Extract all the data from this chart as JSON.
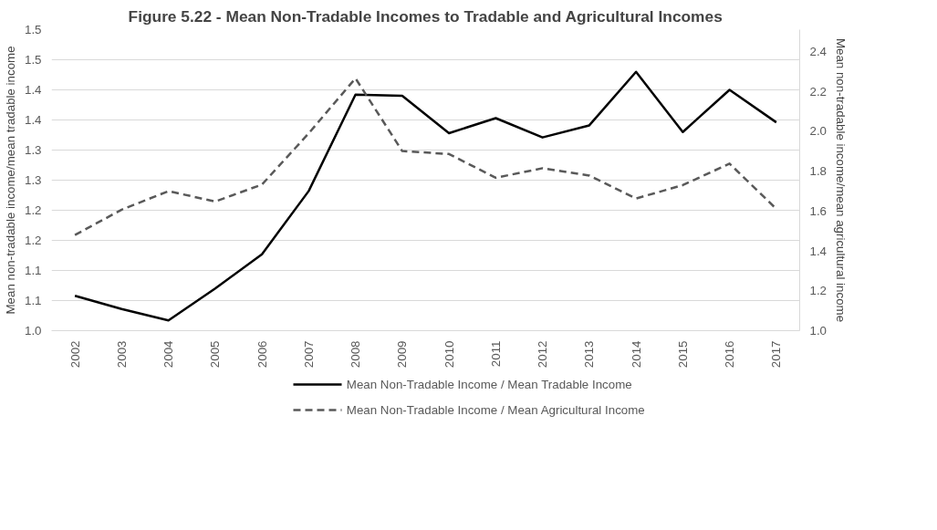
{
  "chart_data": {
    "type": "line",
    "title": "Figure 5.22 - Mean Non-Tradable Incomes to Tradable and Agricultural Incomes",
    "ylabel": "Mean non-tradable income/mean tradable income",
    "y2label": "Mean non-tradable income/mean agricultural income",
    "categories": [
      "2002",
      "2003",
      "2004",
      "2005",
      "2006",
      "2007",
      "2008",
      "2009",
      "2010",
      "2011",
      "2012",
      "2013",
      "2014",
      "2015",
      "2016",
      "2017"
    ],
    "series": [
      {
        "name": "Mean Non-Tradable Income / Mean Tradable Income",
        "color": "#000000",
        "line_style": "solid",
        "values": [
          1.058,
          1.036,
          1.017,
          1.07,
          1.127,
          1.232,
          1.392,
          1.39,
          1.328,
          1.353,
          1.321,
          1.341,
          1.43,
          1.33,
          1.4,
          1.346
        ]
      },
      {
        "name": "Mean Non-Tradable Income / Mean Agricultural Income",
        "color": "#595959",
        "line_style": "dashed",
        "axis": "y2",
        "values": [
          1.48,
          1.607,
          1.7,
          1.648,
          1.733,
          1.99,
          2.266,
          1.901,
          1.886,
          1.767,
          1.815,
          1.778,
          1.663,
          1.73,
          1.838,
          1.611
        ]
      }
    ],
    "ylim": [
      1.0,
      1.5
    ],
    "yticks": [
      {
        "value": 1.0,
        "label": "1.0"
      },
      {
        "value": 1.05,
        "label": "1.1"
      },
      {
        "value": 1.1,
        "label": "1.1"
      },
      {
        "value": 1.15,
        "label": "1.2"
      },
      {
        "value": 1.2,
        "label": "1.2"
      },
      {
        "value": 1.25,
        "label": "1.3"
      },
      {
        "value": 1.3,
        "label": "1.3"
      },
      {
        "value": 1.35,
        "label": "1.4"
      },
      {
        "value": 1.4,
        "label": "1.4"
      },
      {
        "value": 1.45,
        "label": "1.5"
      },
      {
        "value": 1.5,
        "label": "1.5"
      }
    ],
    "y2lim": [
      1.0,
      2.51
    ],
    "y2ticks": [
      {
        "value": 1.0,
        "label": "1.0"
      },
      {
        "value": 1.2,
        "label": "1.2"
      },
      {
        "value": 1.4,
        "label": "1.4"
      },
      {
        "value": 1.6,
        "label": "1.6"
      },
      {
        "value": 1.8,
        "label": "1.8"
      },
      {
        "value": 2.0,
        "label": "2.0"
      },
      {
        "value": 2.2,
        "label": "2.2"
      },
      {
        "value": 2.4,
        "label": "2.4"
      }
    ],
    "grid": "y",
    "legend": "bottom",
    "marker": "none"
  }
}
